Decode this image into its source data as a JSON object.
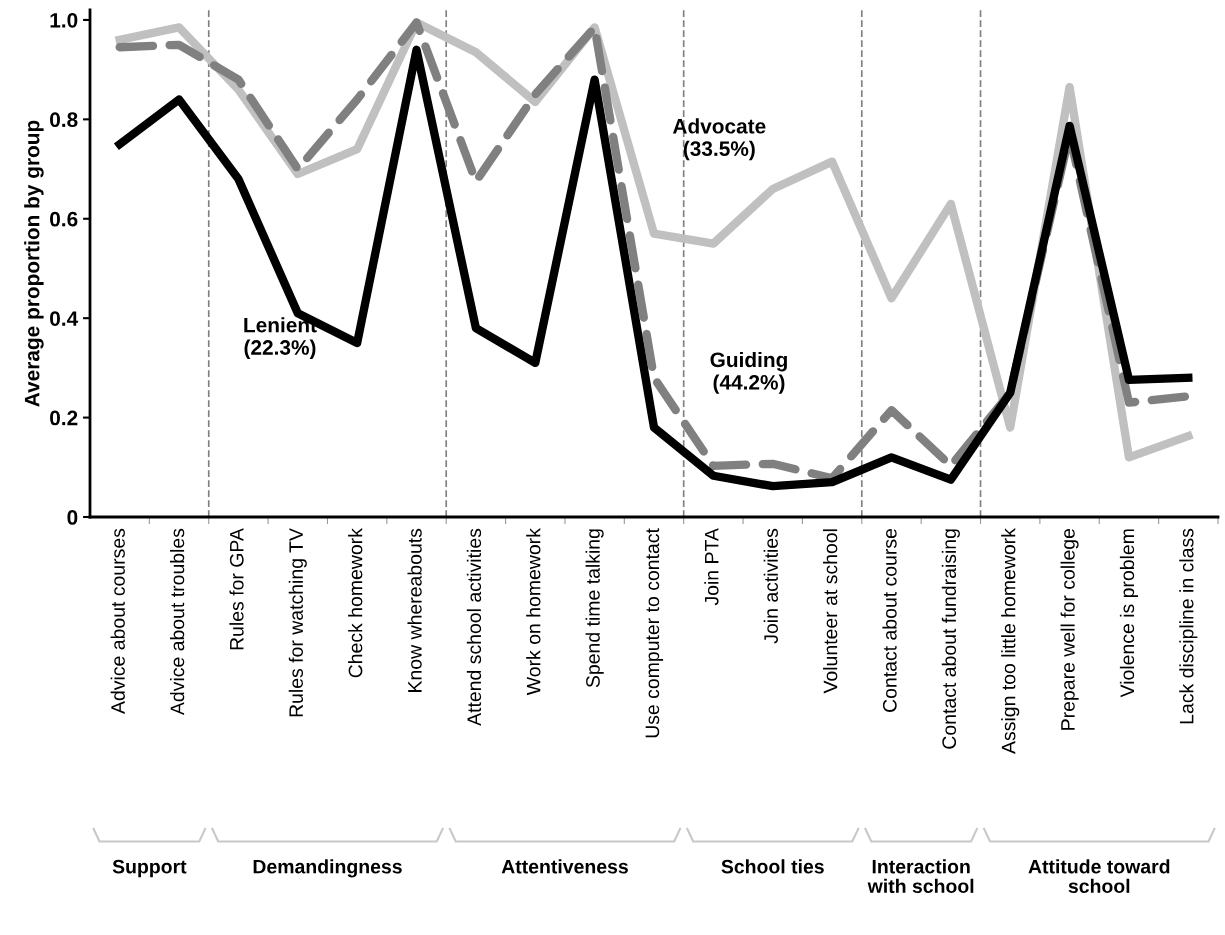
{
  "chart_data": {
    "type": "line",
    "ylabel": "Average proportion by group",
    "categories": [
      "Advice about courses",
      "Advice about troubles",
      "Rules for GPA",
      "Rules for watching TV",
      "Check homework",
      "Know whereabouts",
      "Attend school activities",
      "Work on homework",
      "Spend time talking",
      "Use computer to contact",
      "Join PTA",
      "Join activities",
      "Volunteer at school",
      "Contact about course",
      "Contact about fundraising",
      "Assign too little homework",
      "Prepare well for college",
      "Violence is problem",
      "Lack discipline in class"
    ],
    "series": [
      {
        "name": "Advocate\n(33.5%)",
        "color": "#c0c0c0",
        "line_style": "solid",
        "values": [
          0.96,
          0.985,
          0.86,
          0.69,
          0.74,
          0.995,
          0.935,
          0.835,
          0.985,
          0.57,
          0.55,
          0.66,
          0.715,
          0.44,
          0.63,
          0.18,
          0.865,
          0.12,
          0.163
        ]
      },
      {
        "name": "Guiding\n(44.2%)",
        "color": "#808080",
        "line_style": "dashed",
        "values": [
          0.945,
          0.95,
          0.88,
          0.7,
          0.84,
          0.995,
          0.675,
          0.85,
          0.985,
          0.28,
          0.103,
          0.107,
          0.078,
          0.215,
          0.103,
          0.25,
          0.77,
          0.23,
          0.243
        ]
      },
      {
        "name": "Lenient\n(22.3%)",
        "color": "#000000",
        "line_style": "solid",
        "values": [
          0.75,
          0.84,
          0.68,
          0.41,
          0.35,
          0.94,
          0.38,
          0.31,
          0.88,
          0.18,
          0.083,
          0.062,
          0.07,
          0.12,
          0.075,
          0.25,
          0.787,
          0.276,
          0.28
        ]
      }
    ],
    "ylim": [
      0,
      1.02
    ],
    "yticks": [
      0,
      {
        "value": 0.2,
        "label": "0.2"
      },
      {
        "value": 0.4,
        "label": "0.4"
      },
      {
        "value": 0.6,
        "label": "0.6"
      },
      {
        "value": 0.8,
        "label": "0.8"
      },
      {
        "value": 1.0,
        "label": "1.0"
      }
    ],
    "annotations": [
      "Support",
      "Demandingness",
      "Attentiveness",
      "School ties",
      "Interaction\nwith school",
      "Attitude toward\nschool"
    ],
    "grid": false,
    "legend": false
  }
}
